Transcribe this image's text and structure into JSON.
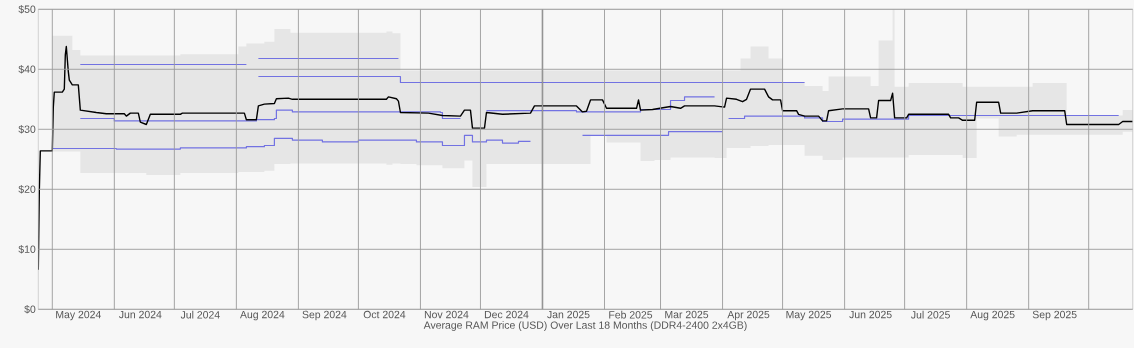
{
  "chart_data": {
    "type": "line",
    "xlabel": "Average RAM Price (USD) Over Last 18 Months (DDR4-2400 2x4GB)",
    "xlim": [
      "2024-04-24",
      "2025-10-23"
    ],
    "ylim": [
      0,
      50
    ],
    "yticks": [
      {
        "value": 0,
        "label": "$0"
      },
      {
        "value": 10,
        "label": "$10"
      },
      {
        "value": 20,
        "label": "$20"
      },
      {
        "value": 30,
        "label": "$30"
      },
      {
        "value": 40,
        "label": "$40"
      },
      {
        "value": 50,
        "label": "$50"
      }
    ],
    "xticks": [
      {
        "value": "2024-05-01",
        "label": null
      },
      {
        "value": "2024-05-14",
        "label": "May 2024"
      },
      {
        "value": "2024-06-01",
        "label": null
      },
      {
        "value": "2024-06-14",
        "label": "Jun 2024"
      },
      {
        "value": "2024-07-01",
        "label": null
      },
      {
        "value": "2024-07-14",
        "label": "Jul 2024"
      },
      {
        "value": "2024-08-01",
        "label": null
      },
      {
        "value": "2024-08-14",
        "label": "Aug 2024"
      },
      {
        "value": "2024-09-01",
        "label": null
      },
      {
        "value": "2024-09-14",
        "label": "Sep 2024"
      },
      {
        "value": "2024-10-01",
        "label": null
      },
      {
        "value": "2024-10-14",
        "label": "Oct 2024"
      },
      {
        "value": "2024-11-01",
        "label": null
      },
      {
        "value": "2024-11-14",
        "label": "Nov 2024"
      },
      {
        "value": "2024-12-01",
        "label": null
      },
      {
        "value": "2024-12-14",
        "label": "Dec 2024"
      },
      {
        "value": "2025-01-01",
        "label": null
      },
      {
        "value": "2025-01-14",
        "label": "Jan 2025"
      },
      {
        "value": "2025-02-01",
        "label": null
      },
      {
        "value": "2025-02-14",
        "label": "Feb 2025"
      },
      {
        "value": "2025-03-01",
        "label": null
      },
      {
        "value": "2025-03-14",
        "label": "Mar 2025"
      },
      {
        "value": "2025-04-01",
        "label": null
      },
      {
        "value": "2025-04-14",
        "label": "Apr 2025"
      },
      {
        "value": "2025-05-01",
        "label": null
      },
      {
        "value": "2025-05-14",
        "label": "May 2025"
      },
      {
        "value": "2025-06-01",
        "label": null
      },
      {
        "value": "2025-06-14",
        "label": "Jun 2025"
      },
      {
        "value": "2025-07-01",
        "label": null
      },
      {
        "value": "2025-07-14",
        "label": "Jul 2025"
      },
      {
        "value": "2025-08-01",
        "label": null
      },
      {
        "value": "2025-08-14",
        "label": "Aug 2025"
      },
      {
        "value": "2025-09-01",
        "label": null
      },
      {
        "value": "2025-09-14",
        "label": "Sep 2025"
      },
      {
        "value": "2025-10-01",
        "label": null
      }
    ],
    "grid": true,
    "ref_lines": [
      {
        "axis": "x",
        "value": "2025-01-01",
        "color": "#666666"
      }
    ],
    "series": [
      {
        "type": "area",
        "color": "#e6e6e6",
        "x": [
          "2024-05-01",
          "2024-05-11",
          "2024-05-15",
          "2024-06-17",
          "2024-07-04",
          "2024-08-02",
          "2024-08-06",
          "2024-08-15",
          "2024-08-20",
          "2024-08-28",
          "2024-10-15",
          "2024-10-18",
          "2024-10-22",
          "2024-10-30",
          "2024-11-12",
          "2024-11-23",
          "2024-11-27",
          "2024-12-04",
          "2025-01-25",
          "2025-02-02",
          "2025-02-19",
          "2025-02-26",
          "2025-03-06",
          "2025-03-28",
          "2025-04-03",
          "2025-04-10",
          "2025-04-15",
          "2025-04-24",
          "2025-05-01",
          "2025-05-12",
          "2025-05-21",
          "2025-05-24",
          "2025-05-31",
          "2025-06-14",
          "2025-06-18",
          "2025-06-25",
          "2025-06-26",
          "2025-07-03",
          "2025-07-30",
          "2025-08-06",
          "2025-08-17",
          "2025-08-26",
          "2025-09-03",
          "2025-09-20",
          "2025-10-18",
          "2025-10-23"
        ],
        "lower": [
          26.3,
          26.3,
          22.7,
          22.4,
          22.7,
          22.9,
          22.9,
          23.1,
          24.2,
          24.3,
          24.1,
          24.3,
          24.2,
          24.0,
          23.5,
          24.8,
          20.4,
          24.2,
          29.1,
          27.8,
          24.7,
          24.9,
          25.3,
          25.2,
          26.9,
          26.9,
          27.2,
          27.4,
          27.4,
          25.6,
          24.9,
          24.9,
          25.3,
          25.3,
          25.3,
          25.3,
          25.3,
          25.7,
          25.2,
          31.8,
          28.8,
          29.1,
          29.1,
          29.1,
          29.6,
          29.6
        ],
        "values": [
          null,
          null,
          null,
          null,
          null,
          null,
          null,
          null,
          null,
          null,
          null,
          null,
          null,
          null,
          null,
          null,
          null,
          null,
          null,
          null,
          null,
          null,
          null,
          null,
          null,
          null,
          null,
          null,
          null,
          null,
          null,
          null,
          null,
          null,
          null,
          null,
          null,
          null,
          null,
          null,
          null,
          null,
          null,
          null,
          null,
          null
        ],
        "upper": [
          45.6,
          43.2,
          42.3,
          42.3,
          42.5,
          43.8,
          44.3,
          44.6,
          46.7,
          46.1,
          46.3,
          46.0,
          39.8,
          39.8,
          39.8,
          39.8,
          39.8,
          39.8,
          39.8,
          39.8,
          39.8,
          39.8,
          39.8,
          39.8,
          39.8,
          41.8,
          43.8,
          41.8,
          37.8,
          37.2,
          36.4,
          38.8,
          38.8,
          37.2,
          44.8,
          50.0,
          37.1,
          37.7,
          37.1,
          37.1,
          37.1,
          37.1,
          37.7,
          32.3,
          33.2,
          33.2
        ]
      },
      {
        "type": "step",
        "color": "#7272e2",
        "x": [
          "2024-05-15",
          "2024-08-06",
          "2024-08-07",
          "2024-08-12",
          "2024-10-21"
        ],
        "values": [
          40.8,
          40.8,
          null,
          41.8,
          41.8
        ]
      },
      {
        "type": "step",
        "color": "#7272e2",
        "x": [
          "2024-08-12",
          "2024-10-21",
          "2024-10-22",
          "2025-05-12"
        ],
        "values": [
          38.8,
          38.8,
          37.8,
          37.8
        ]
      },
      {
        "type": "step",
        "color": "#7272e2",
        "x": [
          "2024-05-15",
          "2024-06-01",
          "2024-08-11",
          "2024-08-20",
          "2024-08-21",
          "2024-08-29",
          "2024-11-11",
          "2024-11-12",
          "2024-11-21",
          "2024-11-22",
          "2024-12-04",
          "2025-01-18",
          "2025-02-19",
          "2025-03-06",
          "2025-03-13",
          "2025-03-28"
        ],
        "values": [
          31.8,
          31.4,
          31.6,
          31.8,
          33.2,
          32.9,
          32.8,
          31.8,
          31.8,
          null,
          33.1,
          32.9,
          33.3,
          34.8,
          35.4,
          35.4
        ]
      },
      {
        "type": "step",
        "color": "#7272e2",
        "x": [
          "2024-05-01",
          "2024-06-02",
          "2024-07-04",
          "2024-08-06",
          "2024-08-15",
          "2024-08-20",
          "2024-08-29",
          "2024-09-13",
          "2024-10-01",
          "2024-10-30",
          "2024-11-12",
          "2024-11-23",
          "2024-11-27",
          "2024-12-04",
          "2024-12-12",
          "2024-12-20",
          "2024-12-26",
          "2024-12-27",
          "2025-01-21",
          "2025-03-05",
          "2025-04-01"
        ],
        "values": [
          26.8,
          26.7,
          26.9,
          27.1,
          27.3,
          28.5,
          28.2,
          27.9,
          28.2,
          27.9,
          27.3,
          29.0,
          27.9,
          28.2,
          27.7,
          28.0,
          28.0,
          null,
          29.0,
          29.6,
          29.6
        ]
      },
      {
        "type": "step",
        "color": "#7272e2",
        "x": [
          "2025-04-04",
          "2025-04-12",
          "2025-05-12",
          "2025-05-21",
          "2025-05-31",
          "2025-07-03",
          "2025-10-16"
        ],
        "values": [
          31.8,
          32.2,
          31.9,
          31.3,
          31.7,
          32.3,
          32.3
        ]
      },
      {
        "color": "#000000",
        "x": [
          "2024-04-24",
          "2024-04-24T12:00",
          "2024-04-25",
          "2024-05-01",
          "2024-05-01T12:00",
          "2024-05-02",
          "2024-05-06",
          "2024-05-07",
          "2024-05-07T12:00",
          "2024-05-08",
          "2024-05-09",
          "2024-05-09T12:00",
          "2024-05-11",
          "2024-05-14",
          "2024-05-15",
          "2024-05-23",
          "2024-05-28",
          "2024-06-06",
          "2024-06-07",
          "2024-06-09",
          "2024-06-13",
          "2024-06-14",
          "2024-06-17",
          "2024-06-19",
          "2024-07-04",
          "2024-07-05",
          "2024-08-05",
          "2024-08-06",
          "2024-08-11",
          "2024-08-12",
          "2024-08-15",
          "2024-08-20",
          "2024-08-21",
          "2024-08-27",
          "2024-08-29",
          "2024-10-15",
          "2024-10-16",
          "2024-10-20",
          "2024-10-21",
          "2024-10-22",
          "2024-11-05",
          "2024-11-12",
          "2024-11-21",
          "2024-11-23",
          "2024-11-26",
          "2024-11-27",
          "2024-12-03",
          "2024-12-04",
          "2024-12-12",
          "2024-12-26",
          "2024-12-28",
          "2025-01-18",
          "2025-01-21",
          "2025-01-23",
          "2025-01-25",
          "2025-01-31",
          "2025-02-02",
          "2025-02-17",
          "2025-02-18",
          "2025-02-19",
          "2025-02-25",
          "2025-03-06",
          "2025-03-11",
          "2025-03-13",
          "2025-03-28",
          "2025-04-02",
          "2025-04-03",
          "2025-04-08",
          "2025-04-11",
          "2025-04-13",
          "2025-04-15",
          "2025-04-22",
          "2025-04-24",
          "2025-04-26",
          "2025-04-30",
          "2025-05-01",
          "2025-05-08",
          "2025-05-09",
          "2025-05-12",
          "2025-05-19",
          "2025-05-21",
          "2025-05-23",
          "2025-05-24",
          "2025-05-31",
          "2025-06-13",
          "2025-06-14",
          "2025-06-17",
          "2025-06-18",
          "2025-06-24",
          "2025-06-25",
          "2025-06-26",
          "2025-07-02",
          "2025-07-03",
          "2025-07-23",
          "2025-07-24",
          "2025-07-28",
          "2025-07-30",
          "2025-08-05",
          "2025-08-06",
          "2025-08-17",
          "2025-08-18",
          "2025-08-26",
          "2025-09-03",
          "2025-09-19",
          "2025-09-20",
          "2025-10-16",
          "2025-10-18",
          "2025-10-23"
        ],
        "values": [
          6.6,
          19.6,
          26.4,
          26.4,
          33.7,
          36.2,
          36.2,
          36.7,
          42.4,
          43.8,
          39.6,
          38.2,
          37.4,
          37.4,
          33.2,
          32.8,
          32.6,
          32.6,
          32.2,
          32.7,
          32.7,
          31.2,
          30.8,
          32.5,
          32.5,
          32.7,
          32.7,
          31.6,
          31.6,
          33.9,
          34.2,
          34.3,
          35.1,
          35.2,
          35.0,
          35.0,
          35.4,
          35.1,
          34.7,
          32.8,
          32.7,
          32.3,
          32.2,
          33.2,
          33.2,
          30.2,
          30.2,
          32.8,
          32.5,
          32.7,
          33.9,
          33.9,
          32.9,
          33.0,
          34.9,
          34.9,
          33.5,
          33.5,
          34.9,
          33.2,
          33.3,
          33.8,
          33.5,
          33.9,
          33.9,
          33.7,
          35.2,
          35.0,
          34.6,
          35.0,
          36.7,
          36.7,
          35.4,
          34.9,
          34.9,
          33.1,
          33.1,
          32.5,
          32.2,
          32.2,
          31.4,
          31.4,
          33.1,
          33.4,
          33.4,
          31.9,
          31.9,
          34.8,
          34.8,
          36.0,
          31.9,
          31.9,
          32.5,
          32.5,
          31.9,
          31.9,
          31.5,
          31.5,
          34.5,
          34.5,
          32.7,
          32.7,
          33.1,
          33.1,
          30.8,
          30.8,
          31.3,
          31.3
        ]
      }
    ]
  }
}
